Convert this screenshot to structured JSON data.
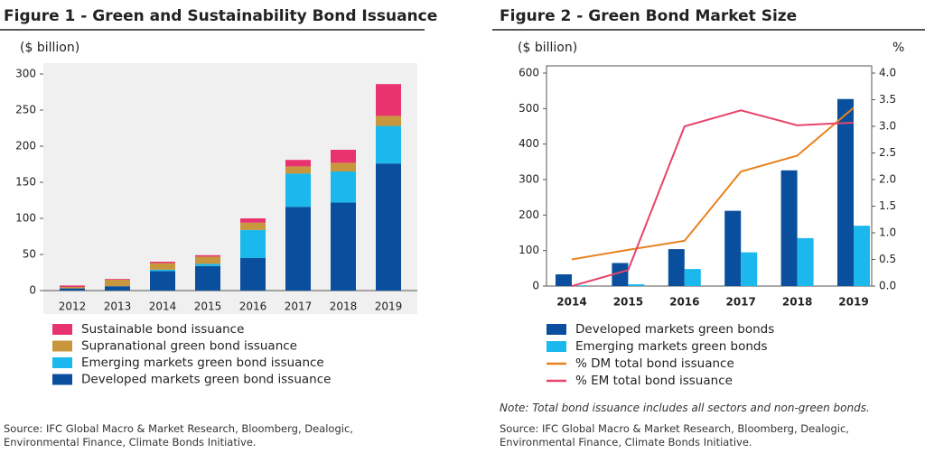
{
  "chart_data": [
    {
      "type": "bar",
      "stacked": true,
      "title": "Figure 1 - Green and Sustainability Bond Issuance",
      "y_label": "($ billion)",
      "categories": [
        "2012",
        "2013",
        "2014",
        "2015",
        "2016",
        "2017",
        "2018",
        "2019"
      ],
      "series": [
        {
          "name": "Developed markets green bond issuance",
          "color": "#0a4f9e",
          "values": [
            3,
            6,
            27,
            34,
            45,
            116,
            122,
            176
          ]
        },
        {
          "name": "Emerging markets green bond issuance",
          "color": "#1ab8ec",
          "values": [
            0,
            0,
            2,
            3,
            39,
            46,
            43,
            52
          ]
        },
        {
          "name": "Supranational green bond issuance",
          "color": "#c8963c",
          "values": [
            2,
            9,
            9,
            10,
            10,
            10,
            12,
            14
          ]
        },
        {
          "name": "Sustainable bond issuance",
          "color": "#e8336e",
          "values": [
            2,
            1,
            2,
            2,
            6,
            9,
            18,
            44
          ]
        }
      ],
      "ylim": [
        0,
        300
      ],
      "yticks": [
        0,
        50,
        100,
        150,
        200,
        250,
        300
      ],
      "source": "Source: IFC Global Macro & Market Research, Bloomberg, Dealogic, Environmental Finance, Climate Bonds Initiative."
    },
    {
      "type": "bar",
      "title": "Figure 2 - Green Bond Market Size",
      "y_label": "($ billion)",
      "y2_label": "%",
      "categories": [
        "2014",
        "2015",
        "2016",
        "2017",
        "2018",
        "2019"
      ],
      "series": [
        {
          "name": "Developed markets green bonds",
          "color": "#0a4f9e",
          "values": [
            33,
            65,
            104,
            212,
            326,
            527
          ]
        },
        {
          "name": "Emerging markets green bonds",
          "color": "#1ab8ec",
          "values": [
            2,
            5,
            48,
            95,
            135,
            170
          ]
        },
        {
          "name": "% DM total bond issuance",
          "type": "line",
          "axis": "y2",
          "color": "#e8821e",
          "values": [
            0.5,
            0.68,
            0.85,
            2.15,
            2.45,
            3.35
          ]
        },
        {
          "name": "% EM total bond issuance",
          "type": "line",
          "axis": "y2",
          "color": "#e8446a",
          "values": [
            0.0,
            0.3,
            3.0,
            3.3,
            3.02,
            3.07
          ]
        }
      ],
      "ylim": [
        0,
        600
      ],
      "yticks": [
        0,
        100,
        200,
        300,
        400,
        500,
        600
      ],
      "y2lim": [
        0,
        4
      ],
      "y2ticks": [
        {
          "value": 0,
          "label": "0.0"
        },
        0.5,
        {
          "value": 1,
          "label": "1.0"
        },
        1.5,
        {
          "value": 2,
          "label": "2.0"
        },
        2.5,
        {
          "value": 3,
          "label": "3.0"
        },
        3.5,
        {
          "value": 4,
          "label": "4.0"
        }
      ],
      "note": "Note: Total bond issuance includes all sectors and non-green bonds.",
      "source": "Source: IFC Global Macro & Market Research, Bloomberg, Dealogic, Environmental Finance, Climate Bonds Initiative."
    }
  ]
}
